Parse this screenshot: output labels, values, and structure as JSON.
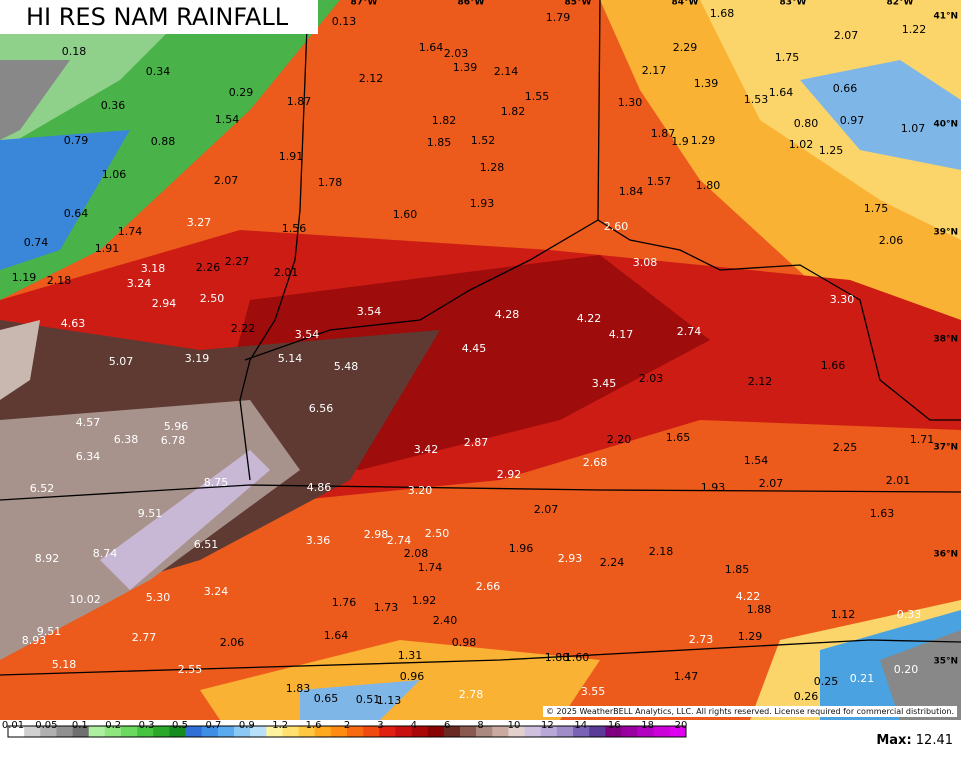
{
  "title": "HI RES NAM RAINFALL",
  "longitude_labels": [
    "87°W",
    "86°W",
    "85°W",
    "84°W",
    "83°W",
    "82°W"
  ],
  "latitude_labels": [
    "41°N",
    "40°N",
    "39°N",
    "38°N",
    "37°N",
    "36°N",
    "35°N"
  ],
  "rainfall_labels": [
    "0.13",
    "1.79",
    "1.68",
    "2.07",
    "1.22",
    "0.18",
    "1.64",
    "2.03",
    "2.29",
    "0.34",
    "2.12",
    "1.39",
    "2.14",
    "2.17",
    "1.75",
    "0.29",
    "1.55",
    "1.30",
    "1.39",
    "1.53",
    "1.64",
    "0.66",
    "0.36",
    "1.87",
    "1.82",
    "1.54",
    "1.82",
    "0.80",
    "0.97",
    "1.07",
    "0.79",
    "0.88",
    "1.85",
    "1.52",
    "1.87",
    "1.9",
    "1.29",
    "1.02",
    "1.25",
    "1.91",
    "1.06",
    "1.28",
    "2.07",
    "1.78",
    "1.57",
    "1.80",
    "1.84",
    "1.93",
    "0.64",
    "1.60",
    "1.75",
    "3.27",
    "1.56",
    "2.60",
    "1.74",
    "0.74",
    "1.91",
    "2.06",
    "3.18",
    "2.26",
    "2.27",
    "2.01",
    "3.08",
    "1.19",
    "2.18",
    "3.24",
    "2.50",
    "2.94",
    "3.30",
    "3.54",
    "4.28",
    "4.22",
    "4.63",
    "2.22",
    "3.54",
    "4.17",
    "2.74",
    "4.45",
    "5.14",
    "1.66",
    "5.07",
    "3.19",
    "5.48",
    "2.03",
    "3.45",
    "2.12",
    "6.56",
    "4.57",
    "5.96",
    "6.38",
    "6.78",
    "1.65",
    "2.20",
    "1.71",
    "2.25",
    "3.42",
    "2.87",
    "6.34",
    "2.68",
    "1.54",
    "2.92",
    "8.75",
    "2.07",
    "2.01",
    "1.93",
    "4.86",
    "3.20",
    "6.52",
    "9.51",
    "2.07",
    "1.63",
    "2.98",
    "2.74",
    "2.50",
    "3.36",
    "6.51",
    "1.96",
    "2.08",
    "8.74",
    "8.92",
    "2.18",
    "2.93",
    "2.24",
    "1.74",
    "1.85",
    "10.02",
    "5.30",
    "3.24",
    "2.66",
    "4.22",
    "1.88",
    "1.76",
    "1.73",
    "1.92",
    "1.12",
    "0.33",
    "9.51",
    "2.40",
    "8.93",
    "2.77",
    "2.06",
    "1.64",
    "2.73",
    "1.29",
    "0.98",
    "1.31",
    "1.88",
    "1.60",
    "5.18",
    "2.55",
    "0.20",
    "0.96",
    "1.47",
    "0.25",
    "0.21",
    "1.83",
    "0.65",
    "0.51",
    "1.13",
    "2.78",
    "3.55",
    "0.26"
  ],
  "copyright": "© 2025 WeatherBELL Analytics, LLC. All rights reserved. License required for commercial distribution.",
  "legend": {
    "ticks": [
      "0.01",
      "0.05",
      "0.1",
      "0.2",
      "0.3",
      "0.5",
      "0.7",
      "0.9",
      "1.2",
      "1.6",
      "2",
      "3",
      "4",
      "6",
      "8",
      "10",
      "12",
      "14",
      "16",
      "18",
      "20"
    ]
  },
  "max": {
    "label": "Max:",
    "value": "12.41"
  }
}
